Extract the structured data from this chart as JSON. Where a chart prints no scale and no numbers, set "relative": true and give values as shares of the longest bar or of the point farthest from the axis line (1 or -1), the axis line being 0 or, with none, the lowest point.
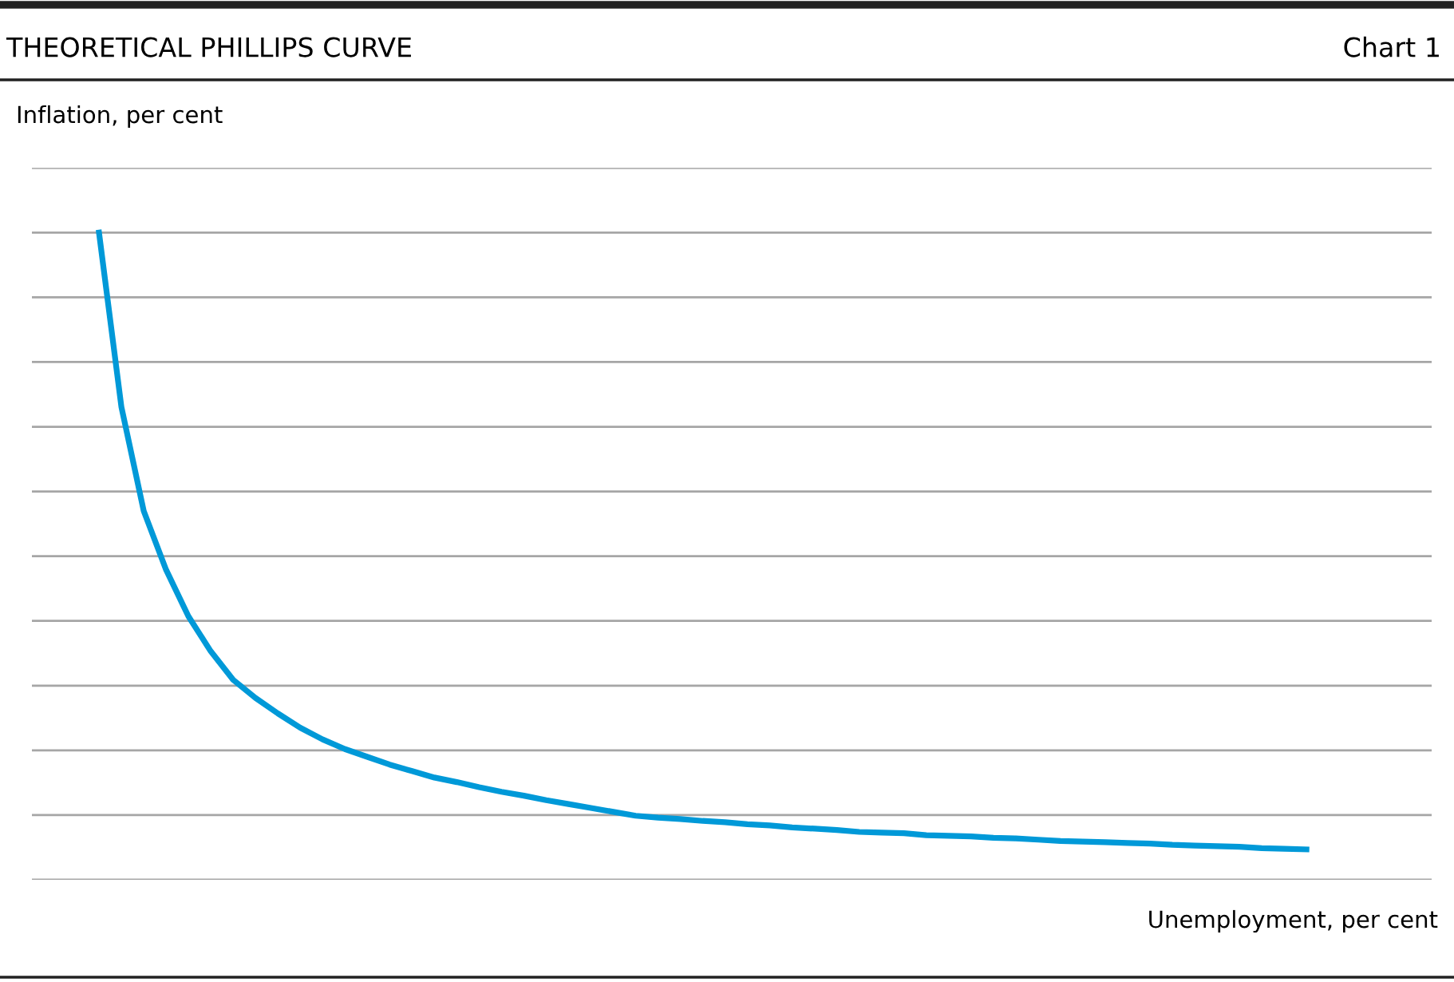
{
  "chart_data": {
    "type": "line",
    "title": "THEORETICAL PHILLIPS CURVE",
    "ylabel": "Inflation, per cent",
    "xlabel": "Unemployment, per cent",
    "annotations": [
      "Chart 1"
    ],
    "relative": true,
    "grid": "y",
    "marker": "none",
    "line_style": "solid",
    "categories": [
      null,
      null,
      null,
      null,
      null,
      null,
      null,
      null,
      null,
      null,
      null,
      null,
      null,
      null,
      null,
      null,
      null,
      null,
      null,
      null,
      null,
      null,
      null,
      null,
      null,
      null,
      null,
      null,
      null,
      null,
      null,
      null,
      null,
      null,
      null,
      null,
      null,
      null,
      null,
      null,
      null,
      null,
      null,
      null,
      null,
      null,
      null,
      null,
      null,
      null,
      null,
      null,
      null,
      null,
      null
    ],
    "series": [
      {
        "color": "#0099d8",
        "values": [
          1.0,
          0.731,
          0.57,
          0.479,
          0.407,
          0.353,
          0.309,
          0.281,
          0.257,
          0.235,
          0.217,
          0.202,
          0.19,
          0.178,
          0.168,
          0.158,
          0.151,
          0.143,
          0.136,
          0.13,
          0.123,
          0.117,
          0.111,
          0.105,
          0.099,
          0.096,
          0.094,
          0.091,
          0.089,
          0.086,
          0.084,
          0.081,
          0.079,
          0.077,
          0.074,
          0.073,
          0.072,
          0.069,
          0.068,
          0.067,
          0.065,
          0.064,
          0.062,
          0.06,
          0.059,
          0.058,
          0.057,
          0.056,
          0.054,
          0.053,
          0.052,
          0.051,
          0.049,
          0.048,
          0.047
        ]
      }
    ]
  }
}
